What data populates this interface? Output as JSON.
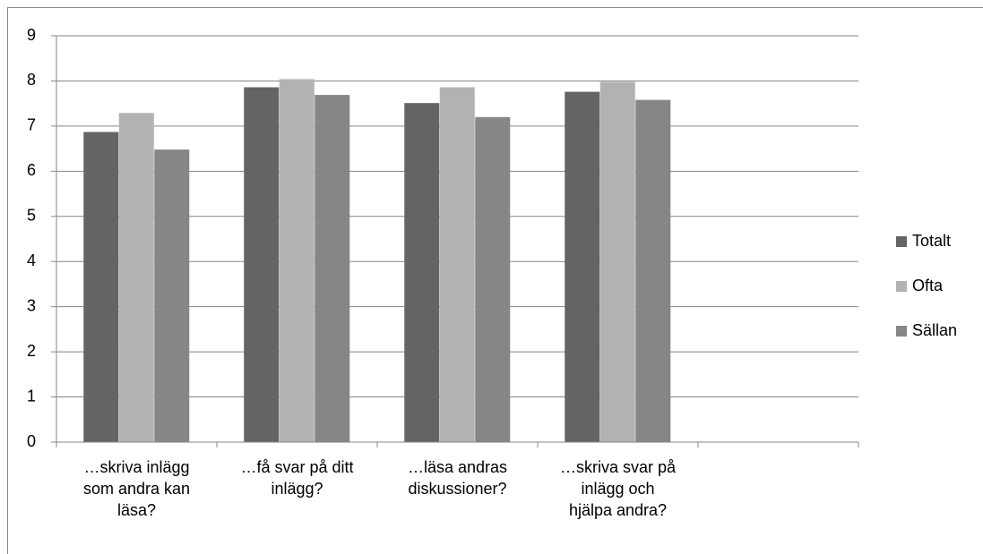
{
  "chart_data": {
    "type": "bar",
    "categories": [
      "…skriva inlägg som andra kan läsa?",
      "…få svar på ditt inlägg?",
      "…läsa andras diskussioner?",
      "…skriva svar på inlägg och hjälpa andra?",
      null
    ],
    "series": [
      {
        "name": "Totalt",
        "color": "#646464",
        "values": [
          6.87,
          7.86,
          7.51,
          7.76,
          null
        ]
      },
      {
        "name": "Ofta",
        "color": "#b2b2b2",
        "values": [
          7.29,
          8.04,
          7.86,
          7.98,
          null
        ]
      },
      {
        "name": "Sällan",
        "color": "#868686",
        "values": [
          6.48,
          7.69,
          7.2,
          7.58,
          null
        ]
      }
    ],
    "ylim": [
      0,
      9
    ],
    "yticks": [
      0,
      1,
      2,
      3,
      4,
      5,
      6,
      7,
      8,
      9
    ],
    "grid": true,
    "legend": "right"
  }
}
